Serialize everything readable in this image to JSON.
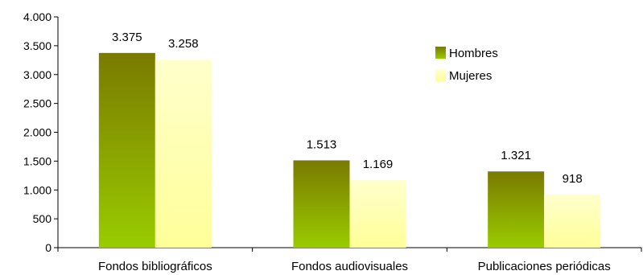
{
  "chart_data": {
    "type": "bar",
    "title": "",
    "xlabel": "",
    "ylabel": "",
    "categories": [
      "Fondos bibliográficos",
      "Fondos audiovisuales",
      "Publicaciones periódicas"
    ],
    "series": [
      {
        "name": "Hombres",
        "values": [
          3375,
          1513,
          1321
        ],
        "labels": [
          "3.375",
          "1.513",
          "1.321"
        ]
      },
      {
        "name": "Mujeres",
        "values": [
          3258,
          1169,
          918
        ],
        "labels": [
          "3.258",
          "1.169",
          "918"
        ]
      }
    ],
    "ylim": [
      0,
      4000
    ],
    "y_ticks": [
      0,
      500,
      1000,
      1500,
      2000,
      2500,
      3000,
      3500,
      4000
    ],
    "y_tick_labels": [
      "0",
      "500",
      "1.000",
      "1.500",
      "2.000",
      "2.500",
      "3.000",
      "3.500",
      "4.000"
    ],
    "grid": false,
    "legend_position": "top-right",
    "colors": {
      "hombres_top": "#7a7a00",
      "hombres_bottom": "#99cc00",
      "mujeres_top": "#ffffcc",
      "mujeres_bottom": "#ffff99",
      "axis": "#000000"
    }
  }
}
